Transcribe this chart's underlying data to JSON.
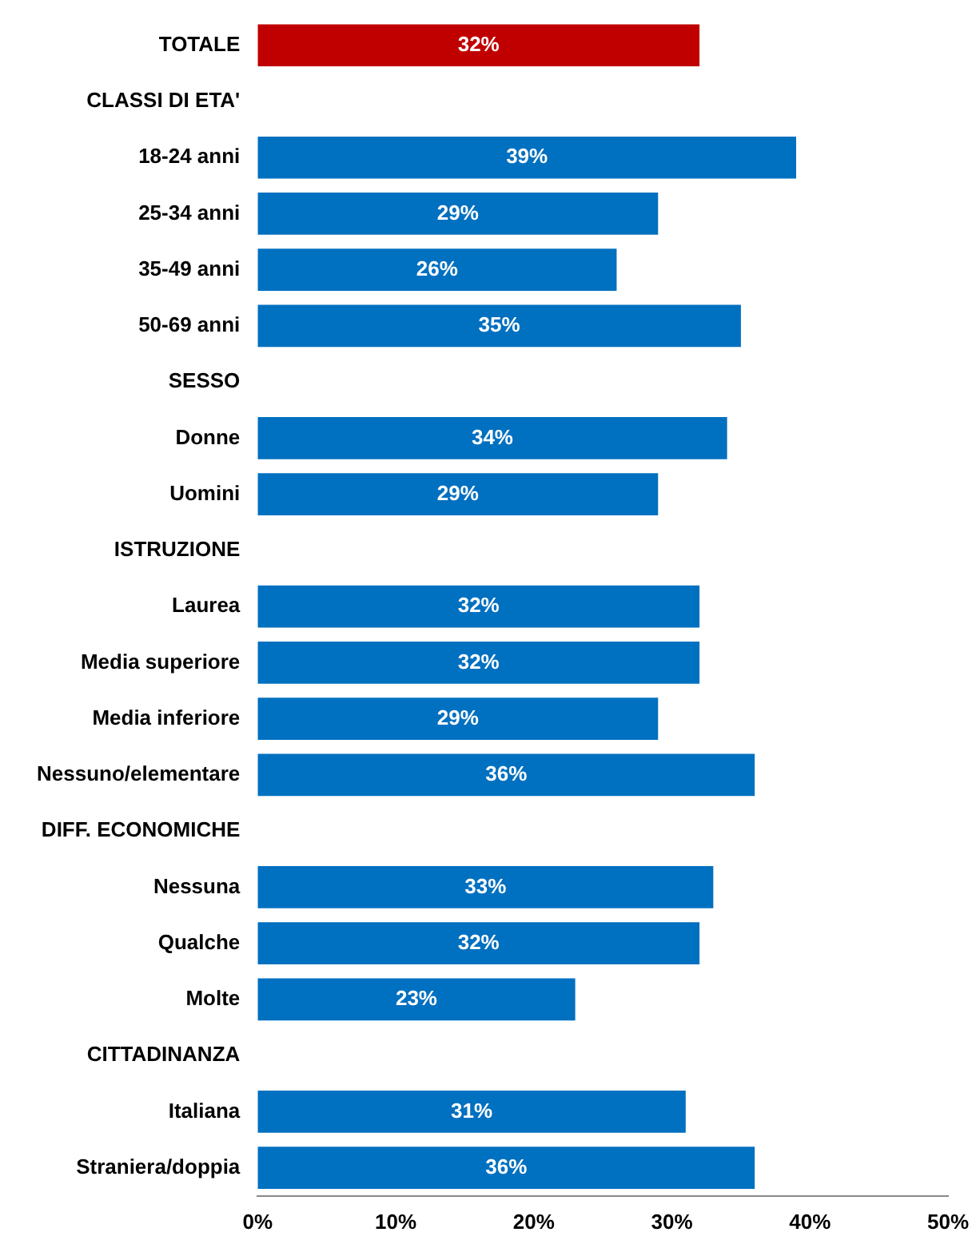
{
  "chart_data": {
    "type": "bar",
    "orientation": "horizontal",
    "categories": [
      "TOTALE",
      "CLASSI DI ETA'",
      "18-24 anni",
      "25-34 anni",
      "35-49 anni",
      "50-69 anni",
      "SESSO",
      "Donne",
      "Uomini",
      "ISTRUZIONE",
      "Laurea",
      "Media superiore",
      "Media inferiore",
      "Nessuno/elementare",
      "DIFF. ECONOMICHE",
      "Nessuna",
      "Qualche",
      "Molte",
      "CITTADINANZA",
      "Italiana",
      "Straniera/doppia"
    ],
    "values": [
      32,
      null,
      39,
      29,
      26,
      35,
      null,
      34,
      29,
      null,
      32,
      32,
      29,
      36,
      null,
      33,
      32,
      23,
      null,
      31,
      36
    ],
    "value_labels": [
      "32%",
      null,
      "39%",
      "29%",
      "26%",
      "35%",
      null,
      "34%",
      "29%",
      null,
      "32%",
      "32%",
      "29%",
      "36%",
      null,
      "33%",
      "32%",
      "23%",
      null,
      "31%",
      "36%"
    ],
    "colors": [
      "#c00000",
      "#0070c0",
      "#0070c0",
      "#0070c0",
      "#0070c0",
      "#0070c0",
      "#0070c0",
      "#0070c0",
      "#0070c0",
      "#0070c0",
      "#0070c0",
      "#0070c0",
      "#0070c0",
      "#0070c0",
      "#0070c0",
      "#0070c0",
      "#0070c0",
      "#0070c0",
      "#0070c0",
      "#0070c0",
      "#0070c0"
    ],
    "xlim": [
      0,
      50
    ],
    "xticks": [
      {
        "value": 0,
        "label": "0%"
      },
      {
        "value": 10,
        "label": "10%"
      },
      {
        "value": 20,
        "label": "20%"
      },
      {
        "value": 30,
        "label": "30%"
      },
      {
        "value": 40,
        "label": "40%"
      },
      {
        "value": 50,
        "label": "50%"
      }
    ],
    "grid": false,
    "legend": false
  }
}
